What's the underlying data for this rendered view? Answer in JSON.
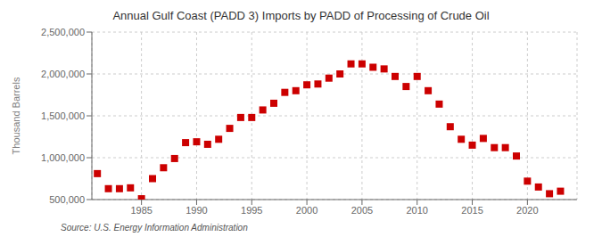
{
  "chart_data": {
    "type": "scatter",
    "title": "Annual Gulf Coast (PADD 3) Imports by PADD of Processing of Crude Oil",
    "ylabel": "Thousand Barrels",
    "annotations": [
      "Source: U.S. Energy Information Administration"
    ],
    "x": [
      1981,
      1982,
      1983,
      1984,
      1985,
      1986,
      1987,
      1988,
      1989,
      1990,
      1991,
      1992,
      1993,
      1994,
      1995,
      1996,
      1997,
      1998,
      1999,
      2000,
      2001,
      2002,
      2003,
      2004,
      2005,
      2006,
      2007,
      2008,
      2009,
      2010,
      2011,
      2012,
      2013,
      2014,
      2015,
      2016,
      2017,
      2018,
      2019,
      2020,
      2021,
      2022,
      2023
    ],
    "values": [
      810000,
      630000,
      630000,
      640000,
      510000,
      750000,
      880000,
      990000,
      1180000,
      1190000,
      1160000,
      1220000,
      1350000,
      1480000,
      1480000,
      1570000,
      1650000,
      1780000,
      1800000,
      1870000,
      1880000,
      1950000,
      2000000,
      2120000,
      2120000,
      2080000,
      2060000,
      1970000,
      1850000,
      1970000,
      1800000,
      1640000,
      1370000,
      1220000,
      1150000,
      1230000,
      1120000,
      1120000,
      1020000,
      720000,
      650000,
      570000,
      600000
    ],
    "color": "#cc0000",
    "marker": "square",
    "xlim": [
      1980.5,
      2024.5
    ],
    "xticks": [
      1985,
      1990,
      1995,
      2000,
      2005,
      2010,
      2015,
      2020
    ],
    "ylim": [
      500000,
      2500000
    ],
    "yticks": [
      {
        "value": 500000,
        "label": "500,000"
      },
      {
        "value": 1000000,
        "label": "1,000,000"
      },
      {
        "value": 1500000,
        "label": "1,500,000"
      },
      {
        "value": 2000000,
        "label": "2,000,000"
      },
      {
        "value": 2500000,
        "label": "2,500,000"
      }
    ],
    "grid": true
  }
}
